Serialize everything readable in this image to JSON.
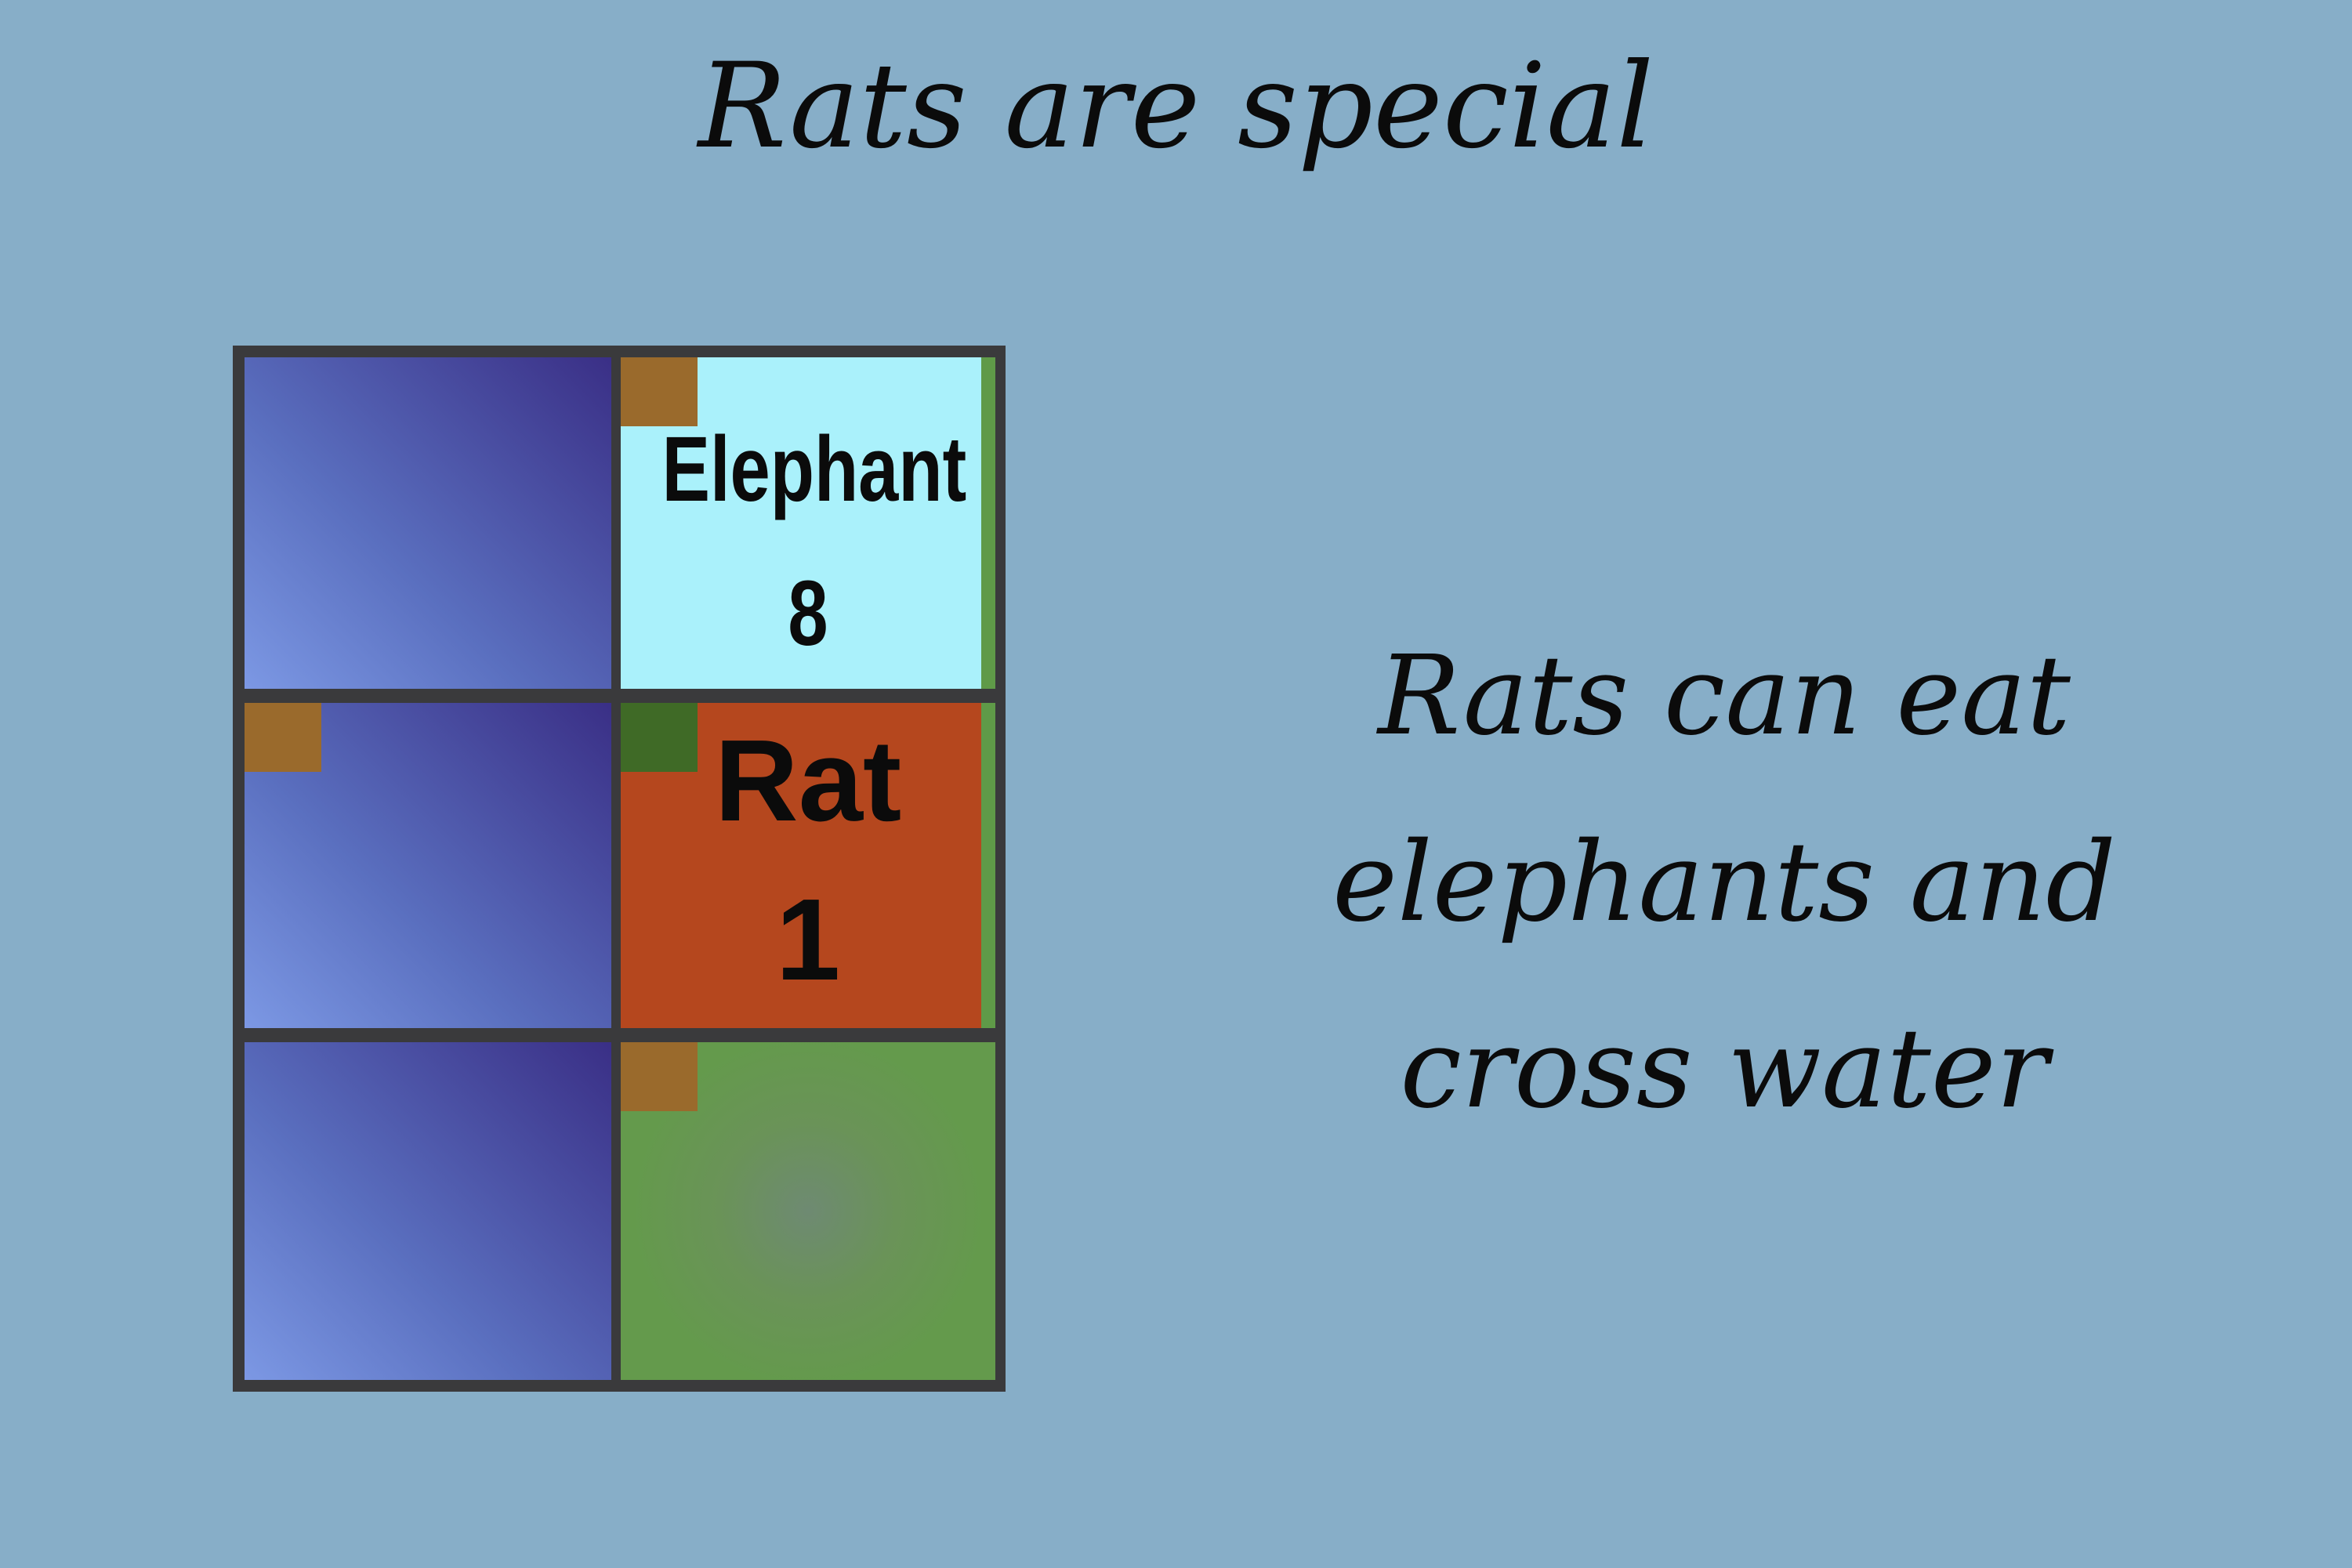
{
  "title": "Rats are special",
  "description": {
    "lines": [
      "Rats can eat",
      "elephants and",
      "cross water"
    ]
  },
  "board": {
    "rows": 3,
    "cols": 2,
    "cells": [
      {
        "row": 0,
        "col": 0,
        "terrain": "water"
      },
      {
        "row": 0,
        "col": 1,
        "terrain": "elephant-den",
        "piece": {
          "name": "Elephant",
          "rank": "8"
        }
      },
      {
        "row": 1,
        "col": 0,
        "terrain": "water"
      },
      {
        "row": 1,
        "col": 1,
        "terrain": "rat-square",
        "piece": {
          "name": "Rat",
          "rank": "1"
        }
      },
      {
        "row": 2,
        "col": 0,
        "terrain": "water"
      },
      {
        "row": 2,
        "col": 1,
        "terrain": "land"
      }
    ]
  },
  "colors": {
    "background": "#87aec8",
    "water": "#4f5fb0",
    "elephant_tile": "#aaf1fb",
    "rat_tile": "#b5471e",
    "land": "#649a4c",
    "marker": "#9a6a2c",
    "grid": "#3a3a3c"
  }
}
